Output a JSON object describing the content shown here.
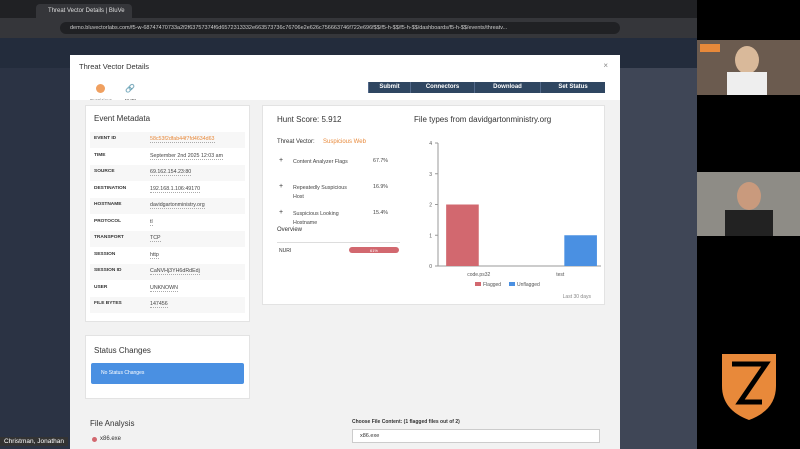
{
  "browser": {
    "tab_title": "Threat Vector Details | BluVe",
    "url": "demo.bluvectorlabs.com/f5-w-68747470733a2f2f63757374f6d6572313332e663573736c76706e2e626c756663746f722e696f$$/f5-h-$$/f5-h-$$/dashboards/f5-h-$$/events/threatv..."
  },
  "modal": {
    "title": "Threat Vector Details",
    "icons": [
      "Suspicious",
      "NURI"
    ],
    "buttons": [
      "Submit",
      "Connectors",
      "Download",
      "Set Status"
    ]
  },
  "event_metadata": {
    "title": "Event Metadata",
    "rows": [
      [
        "EVENT ID",
        "58c53f2dfab44f7fd4634d63"
      ],
      [
        "TIME",
        "September 2nd 2025 12:03 am"
      ],
      [
        "SOURCE",
        "69.162.154.23:80"
      ],
      [
        "DESTINATION",
        "192.168.1.106:49170"
      ],
      [
        "HOSTNAME",
        "davidgartonministry.org"
      ],
      [
        "PROTOCOL",
        "tl"
      ],
      [
        "TRANSPORT",
        "TCP"
      ],
      [
        "SESSION",
        "http"
      ],
      [
        "SESSION ID",
        "CaNVHj3YH6dRdEdj"
      ],
      [
        "USER",
        "UNKNOWN"
      ],
      [
        "FILE BYTES",
        "147456"
      ]
    ]
  },
  "hunt": {
    "score": "Hunt Score: 5.912",
    "vector_label": "Threat Vector:",
    "vector_value": "Suspicious Web",
    "flags": [
      [
        "Content Analyzer Flags",
        "67.7%"
      ],
      [
        "Repeatedly Suspicious Host",
        "16.9%"
      ],
      [
        "Suspicious Looking Hostname",
        "15.4%"
      ]
    ],
    "overview": "Overview",
    "overview_row": [
      "NURI",
      "61%"
    ]
  },
  "chart_data": {
    "type": "bar",
    "title": "File types from davidgartonministry.org",
    "categories": [
      "code.ps32",
      "test"
    ],
    "series": [
      {
        "name": "Flagged",
        "color": "#d2686f",
        "values": [
          2,
          null
        ]
      },
      {
        "name": "Unflagged",
        "color": "#4a90e2",
        "values": [
          null,
          1
        ]
      }
    ],
    "ylim": [
      0,
      4
    ],
    "yticks": [
      0,
      1,
      2,
      3,
      4
    ],
    "grid": false,
    "legend": "bottom",
    "note": "Last 30 days"
  },
  "status": {
    "title": "Status Changes",
    "empty": "No Status Changes"
  },
  "file_analysis": {
    "title": "File Analysis",
    "file": "x86.exe",
    "choose": "Choose File Content: (1 flagged files out of 2)",
    "selected": "x86.exe"
  },
  "call": {
    "participant": "Christman, Jonathan"
  }
}
